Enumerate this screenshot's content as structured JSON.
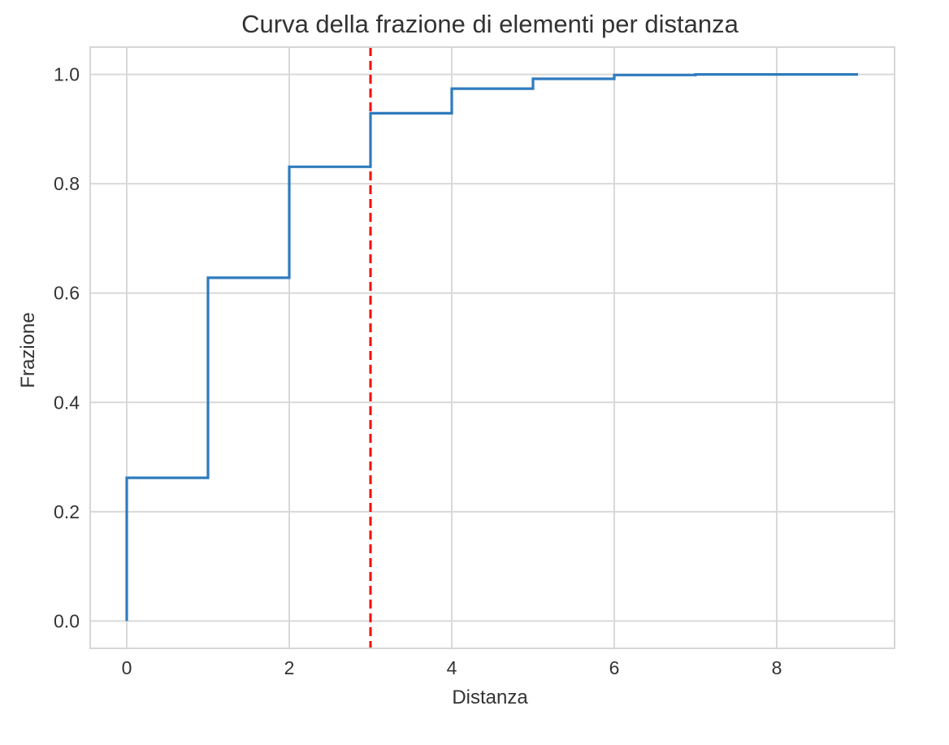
{
  "chart_data": {
    "type": "line",
    "step": "post",
    "title": "Curva della frazione di elementi per distanza",
    "xlabel": "Distanza",
    "ylabel": "Frazione",
    "xlim": [
      -0.45,
      9.45
    ],
    "ylim": [
      -0.05,
      1.05
    ],
    "xticks": [
      0,
      2,
      4,
      6,
      8
    ],
    "xtick_labels": [
      "0",
      "2",
      "4",
      "6",
      "8"
    ],
    "yticks": [
      0.0,
      0.2,
      0.4,
      0.6,
      0.8,
      1.0
    ],
    "ytick_labels": [
      "0.0",
      "0.2",
      "0.4",
      "0.6",
      "0.8",
      "1.0"
    ],
    "grid": true,
    "series": [
      {
        "color": "#2f7bbd",
        "x": [
          0,
          0,
          1,
          1,
          2,
          2,
          3,
          3,
          4,
          4,
          5,
          5,
          6,
          6,
          7,
          7,
          8,
          8,
          9
        ],
        "y": [
          0.0,
          0.262,
          0.262,
          0.628,
          0.628,
          0.831,
          0.831,
          0.929,
          0.929,
          0.974,
          0.974,
          0.992,
          0.992,
          0.999,
          0.999,
          1.0,
          1.0,
          1.0,
          1.0
        ]
      }
    ],
    "reference_lines": [
      {
        "orientation": "vertical",
        "x": 3,
        "color": "#ff0000",
        "style": "dashed"
      }
    ]
  }
}
